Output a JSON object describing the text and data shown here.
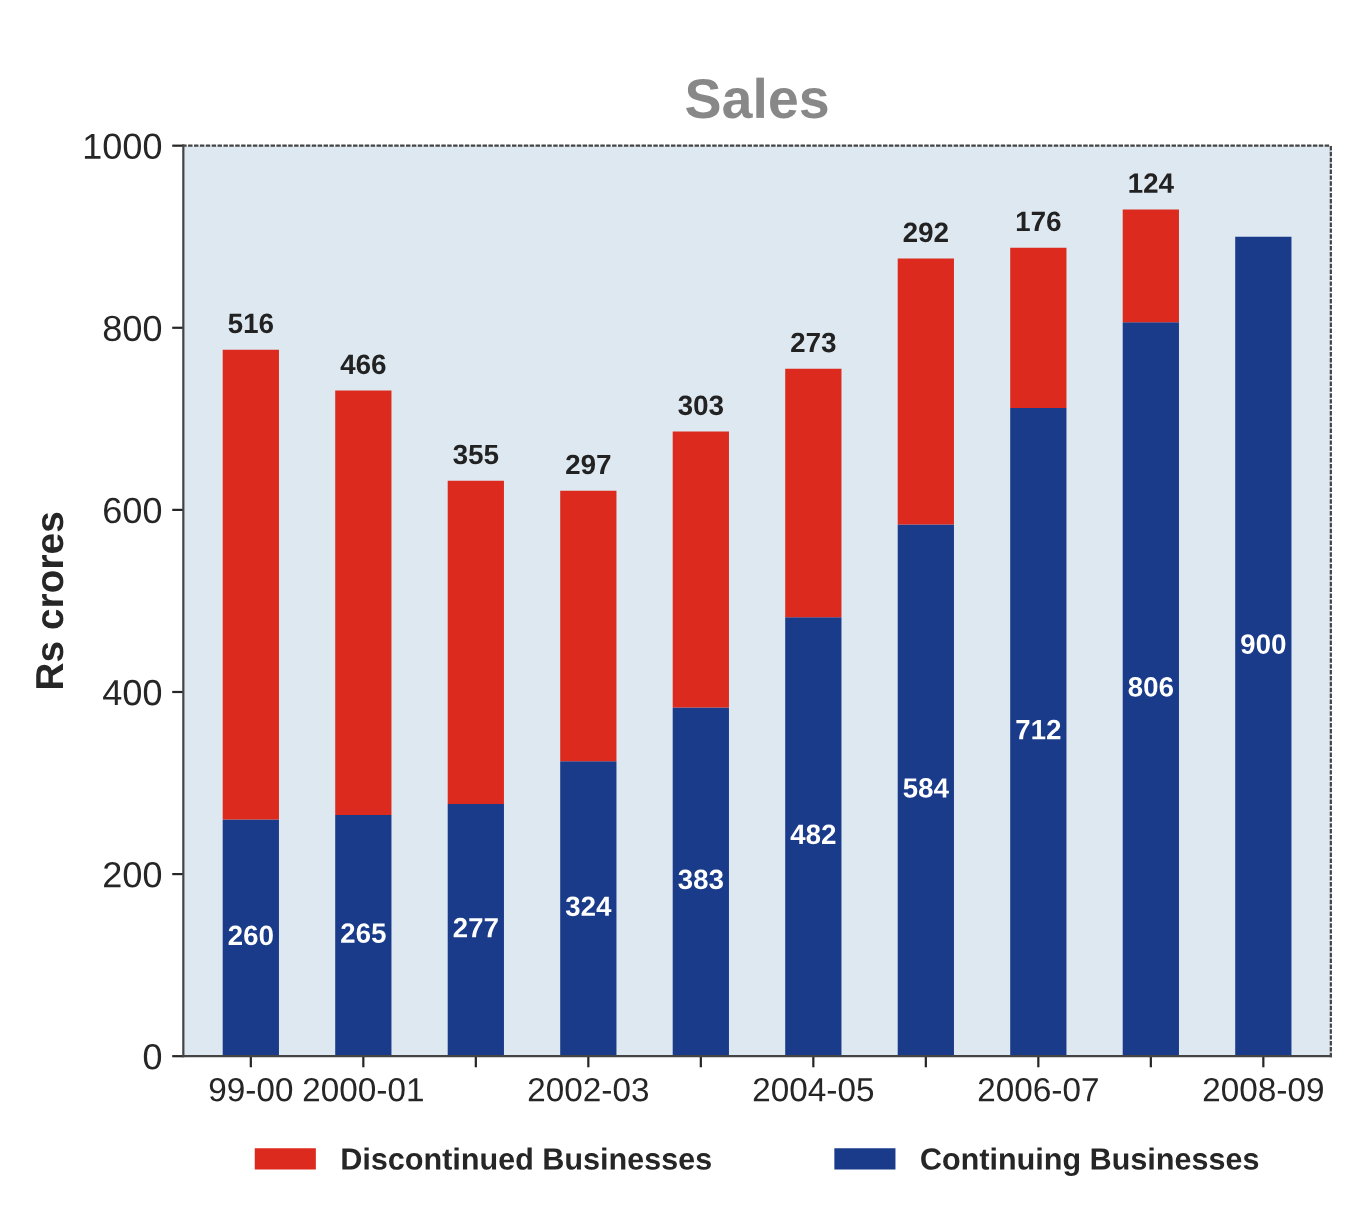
{
  "chart_data": {
    "type": "bar",
    "title": "Sales",
    "ylabel": "Rs crores",
    "categories": [
      "99-00",
      "2000-01",
      null,
      "2002-03",
      null,
      "2004-05",
      null,
      "2006-07",
      null,
      "2008-09"
    ],
    "stacked": true,
    "series": [
      {
        "name": "Continuing Businesses",
        "color": "#1a3a8a",
        "values": [
          260,
          265,
          277,
          324,
          383,
          482,
          584,
          712,
          806,
          900
        ]
      },
      {
        "name": "Discontinued Businesses",
        "color": "#dc2a1f",
        "values": [
          516,
          466,
          355,
          297,
          303,
          273,
          292,
          176,
          124,
          null
        ]
      }
    ],
    "ylim": [
      0,
      1000
    ],
    "yticks": [
      0,
      200,
      400,
      600,
      800,
      1000
    ],
    "data_labels": true,
    "grid": false,
    "legend": "bottom"
  }
}
